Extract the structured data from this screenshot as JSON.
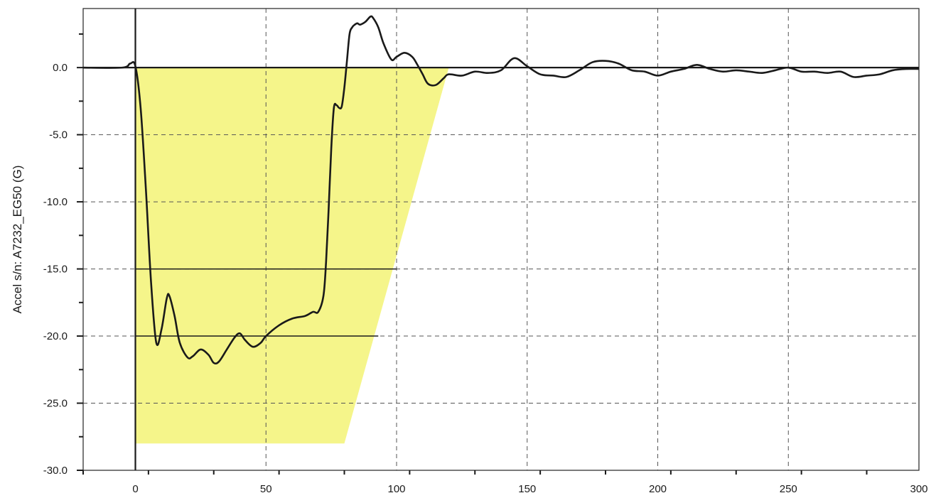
{
  "chart_data": {
    "type": "line",
    "title": "",
    "xlabel": "",
    "ylabel": "Accel s/n: A7232_EG50 (G)",
    "xlim": [
      -20,
      300
    ],
    "ylim": [
      -30,
      4.4
    ],
    "x_ticks": [
      0,
      50,
      100,
      150,
      200,
      250,
      300
    ],
    "x_tick_labels": [
      "0",
      "50",
      "100",
      "150",
      "200",
      "250",
      "300"
    ],
    "y_ticks": [
      0,
      -5,
      -10,
      -15,
      -20,
      -25,
      -30
    ],
    "y_tick_labels": [
      "0.0",
      "-5.0",
      "-10.0",
      "-15.0",
      "-20.0",
      "-25.0",
      "-30.0"
    ],
    "grid": true,
    "corridor": {
      "color": "#f5f58a",
      "polygon": [
        [
          0,
          0
        ],
        [
          120,
          0
        ],
        [
          80,
          -28
        ],
        [
          0,
          -28
        ]
      ]
    },
    "reference_lines": [
      {
        "y": -15,
        "x": [
          0,
          100
        ]
      },
      {
        "y": -20,
        "x": [
          0,
          93
        ]
      }
    ],
    "series": [
      {
        "color": "#1a1a1a",
        "x": [
          -20,
          -5,
          -2,
          0,
          2,
          4,
          6,
          8,
          10,
          12,
          13,
          15,
          17,
          20,
          22,
          25,
          28,
          30,
          32,
          35,
          38,
          40,
          42,
          45,
          48,
          50,
          55,
          60,
          65,
          68,
          70,
          72,
          73,
          74,
          75,
          76,
          77,
          78,
          79,
          80,
          81,
          82,
          83,
          84,
          85,
          86,
          88,
          90,
          91,
          93,
          95,
          98,
          100,
          103,
          106,
          108,
          110,
          112,
          115,
          118,
          120,
          125,
          130,
          135,
          140,
          145,
          150,
          155,
          160,
          165,
          170,
          175,
          180,
          185,
          190,
          195,
          200,
          205,
          210,
          215,
          220,
          225,
          230,
          235,
          240,
          245,
          250,
          255,
          260,
          265,
          270,
          275,
          280,
          285,
          290,
          295,
          300
        ],
        "y": [
          0,
          0,
          0.3,
          0.1,
          -3,
          -9,
          -16,
          -20.5,
          -19.5,
          -17.2,
          -17.0,
          -18.5,
          -20.5,
          -21.6,
          -21.5,
          -21.0,
          -21.4,
          -22.0,
          -21.9,
          -21.0,
          -20.1,
          -19.8,
          -20.3,
          -20.8,
          -20.5,
          -20.0,
          -19.2,
          -18.7,
          -18.5,
          -18.2,
          -18.2,
          -17.0,
          -14.5,
          -10.5,
          -6.0,
          -3.0,
          -2.8,
          -3.0,
          -2.9,
          -1.5,
          0.5,
          2.5,
          3.0,
          3.2,
          3.3,
          3.2,
          3.4,
          3.8,
          3.7,
          3.0,
          1.8,
          0.6,
          0.8,
          1.1,
          0.8,
          0.2,
          -0.5,
          -1.2,
          -1.3,
          -0.8,
          -0.5,
          -0.6,
          -0.3,
          -0.4,
          -0.2,
          0.7,
          0.1,
          -0.5,
          -0.6,
          -0.7,
          -0.2,
          0.4,
          0.5,
          0.3,
          -0.2,
          -0.3,
          -0.6,
          -0.3,
          -0.1,
          0.2,
          -0.1,
          -0.3,
          -0.2,
          -0.3,
          -0.4,
          -0.2,
          0.0,
          -0.3,
          -0.3,
          -0.4,
          -0.3,
          -0.7,
          -0.6,
          -0.5,
          -0.2,
          -0.1,
          -0.1
        ]
      }
    ]
  }
}
